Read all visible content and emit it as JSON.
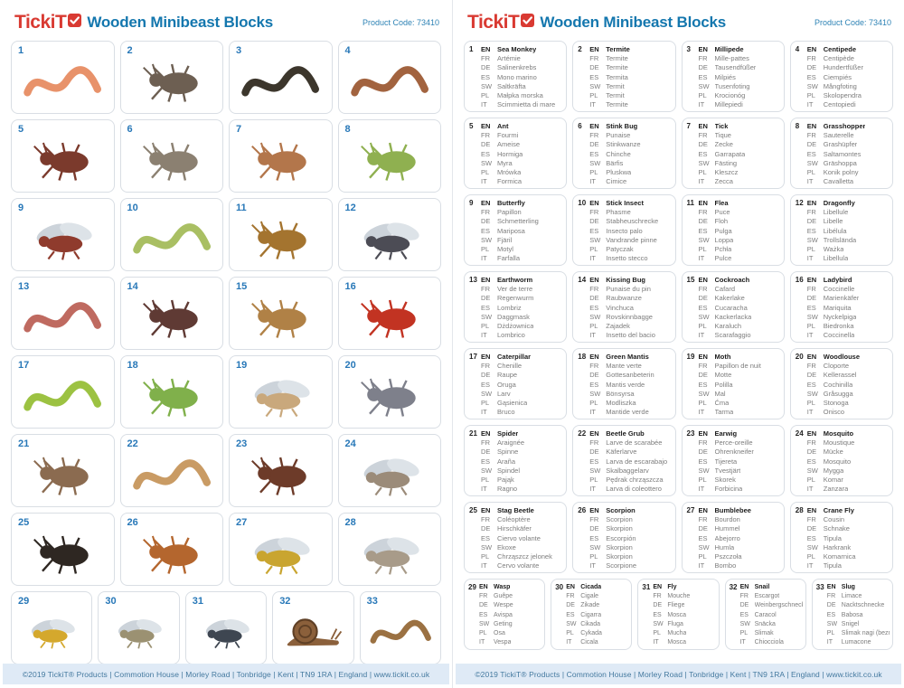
{
  "page": {
    "brand": "TickiT",
    "title": "Wooden Minibeast Blocks",
    "product_code": "Product Code: 73410",
    "footer": "©2019 TickiT® Products  |  Commotion House  |  Morley Road  |  Tonbridge  |  Kent  |  TN9 1RA  |  England  |  www.tickit.co.uk"
  },
  "colors": {
    "brand_red": "#d93a32",
    "heading_blue": "#1477ae",
    "cell_number_blue": "#2878b8",
    "cell_border": "#d9dee4",
    "footer_bg": "#dfeaf6",
    "footer_text": "#44799f",
    "translation_gray": "#7d7d7d"
  },
  "languages": [
    "EN",
    "FR",
    "DE",
    "ES",
    "SW",
    "PL",
    "IT"
  ],
  "minibeasts": [
    {
      "num": 1,
      "shape": "worm",
      "color": "#e8926a",
      "names": [
        "Sea Monkey",
        "Artémie",
        "Salinenkrebs",
        "Mono marino",
        "Saltkräfta",
        "Małpka morska",
        "Scimmietta di mare"
      ]
    },
    {
      "num": 2,
      "shape": "bug",
      "color": "#6d5f52",
      "names": [
        "Termite",
        "Termite",
        "Termite",
        "Termita",
        "Termit",
        "Termit",
        "Termite"
      ]
    },
    {
      "num": 3,
      "shape": "worm",
      "color": "#3c362c",
      "names": [
        "Millipede",
        "Mille-pattes",
        "Tausendfüßer",
        "Milpiés",
        "Tusenfoting",
        "Krocionóg",
        "Millepiedi"
      ]
    },
    {
      "num": 4,
      "shape": "worm",
      "color": "#a2633f",
      "names": [
        "Centipede",
        "Centipède",
        "Hundertfüßer",
        "Ciempiés",
        "Mångfoting",
        "Skolopendra",
        "Centopiedi"
      ]
    },
    {
      "num": 5,
      "shape": "bug",
      "color": "#7b3a2c",
      "names": [
        "Ant",
        "Fourmi",
        "Ameise",
        "Hormiga",
        "Myra",
        "Mrówka",
        "Formica"
      ]
    },
    {
      "num": 6,
      "shape": "bug",
      "color": "#8b8071",
      "names": [
        "Stink Bug",
        "Punaise",
        "Stinkwanze",
        "Chinche",
        "Bärfis",
        "Pluskwa",
        "Cimice"
      ]
    },
    {
      "num": 7,
      "shape": "bug",
      "color": "#b3764b",
      "names": [
        "Tick",
        "Tique",
        "Zecke",
        "Garrapata",
        "Fästing",
        "Kleszcz",
        "Zecca"
      ]
    },
    {
      "num": 8,
      "shape": "bug",
      "color": "#8fb050",
      "names": [
        "Grasshopper",
        "Sauterelle",
        "Grashüpfer",
        "Saltamontes",
        "Gräshoppa",
        "Konik polny",
        "Cavalletta"
      ]
    },
    {
      "num": 9,
      "shape": "winged",
      "color": "#8f3b2d",
      "names": [
        "Butterfly",
        "Papillon",
        "Schmetterling",
        "Mariposa",
        "Fjäril",
        "Motyl",
        "Farfalla"
      ]
    },
    {
      "num": 10,
      "shape": "worm",
      "color": "#a9bf63",
      "names": [
        "Stick Insect",
        "Phasme",
        "Stabheuschrecke",
        "Insecto palo",
        "Vandrande pinne",
        "Patyczak",
        "Insetto stecco"
      ]
    },
    {
      "num": 11,
      "shape": "bug",
      "color": "#a4742f",
      "names": [
        "Flea",
        "Puce",
        "Floh",
        "Pulga",
        "Loppa",
        "Pchła",
        "Pulce"
      ]
    },
    {
      "num": 12,
      "shape": "winged",
      "color": "#4c4c55",
      "names": [
        "Dragonfly",
        "Libellule",
        "Libelle",
        "Libélula",
        "Trollslända",
        "Ważka",
        "Libellula"
      ]
    },
    {
      "num": 13,
      "shape": "worm",
      "color": "#bf6a60",
      "names": [
        "Earthworm",
        "Ver de terre",
        "Regenwurm",
        "Lombriz",
        "Daggmask",
        "Dżdżownica",
        "Lombrico"
      ]
    },
    {
      "num": 14,
      "shape": "bug",
      "color": "#5f3a34",
      "names": [
        "Kissing Bug",
        "Punaise du pin",
        "Raubwanze",
        "Vinchuca",
        "Rovskinnbagge",
        "Zajadek",
        "Insetto del bacio"
      ]
    },
    {
      "num": 15,
      "shape": "bug",
      "color": "#b08146",
      "names": [
        "Cockroach",
        "Cafard",
        "Kakerlake",
        "Cucaracha",
        "Kackerlacka",
        "Karaluch",
        "Scarafaggio"
      ]
    },
    {
      "num": 16,
      "shape": "bug",
      "color": "#c23322",
      "names": [
        "Ladybird",
        "Coccinelle",
        "Marienkäfer",
        "Mariquita",
        "Nyckelpiga",
        "Biedronka",
        "Coccinella"
      ]
    },
    {
      "num": 17,
      "shape": "worm",
      "color": "#9cc242",
      "names": [
        "Caterpillar",
        "Chenille",
        "Raupe",
        "Oruga",
        "Larv",
        "Gąsienica",
        "Bruco"
      ]
    },
    {
      "num": 18,
      "shape": "bug",
      "color": "#80b04b",
      "names": [
        "Green Mantis",
        "Mante verte",
        "Gottesanbeterin",
        "Mantis verde",
        "Bönsyrsa",
        "Modliszka",
        "Mantide verde"
      ]
    },
    {
      "num": 19,
      "shape": "winged",
      "color": "#c9a87c",
      "names": [
        "Moth",
        "Papillon de nuit",
        "Motte",
        "Polilla",
        "Mal",
        "Ćma",
        "Tarma"
      ]
    },
    {
      "num": 20,
      "shape": "bug",
      "color": "#7e808b",
      "names": [
        "Woodlouse",
        "Cloporte",
        "Kellerassel",
        "Cochinilla",
        "Gråsugga",
        "Stonoga",
        "Onisco"
      ]
    },
    {
      "num": 21,
      "shape": "bug",
      "color": "#8b6b50",
      "names": [
        "Spider",
        "Araignée",
        "Spinne",
        "Araña",
        "Spindel",
        "Pająk",
        "Ragno"
      ]
    },
    {
      "num": 22,
      "shape": "worm",
      "color": "#c99b64",
      "names": [
        "Beetle Grub",
        "Larve de scarabée",
        "Käferlarve",
        "Larva de escarabajo",
        "Skalbaggelarv",
        "Pędrak chrząszcza",
        "Larva di coleottero"
      ]
    },
    {
      "num": 23,
      "shape": "bug",
      "color": "#6d3b29",
      "names": [
        "Earwig",
        "Perce-oreille",
        "Ohrenkneifer",
        "Tijereta",
        "Tvestjärt",
        "Skorek",
        "Forbicina"
      ]
    },
    {
      "num": 24,
      "shape": "winged",
      "color": "#9b8b79",
      "names": [
        "Mosquito",
        "Moustique",
        "Mücke",
        "Mosquito",
        "Mygga",
        "Komar",
        "Zanzara"
      ]
    },
    {
      "num": 25,
      "shape": "bug",
      "color": "#2e2722",
      "names": [
        "Stag Beetle",
        "Coléoptère",
        "Hirschkäfer",
        "Ciervo volante",
        "Ekoxe",
        "Chrząszcz jelonek",
        "Cervo volante"
      ]
    },
    {
      "num": 26,
      "shape": "bug",
      "color": "#b4662e",
      "names": [
        "Scorpion",
        "Scorpion",
        "Skorpion",
        "Escorpión",
        "Skorpion",
        "Skorpion",
        "Scorpione"
      ]
    },
    {
      "num": 27,
      "shape": "winged",
      "color": "#c9a530",
      "names": [
        "Bumblebee",
        "Bourdon",
        "Hummel",
        "Abejorro",
        "Humla",
        "Pszczoła",
        "Bombo"
      ]
    },
    {
      "num": 28,
      "shape": "winged",
      "color": "#a89b89",
      "names": [
        "Crane Fly",
        "Cousin",
        "Schnake",
        "Tipula",
        "Harkrank",
        "Komarnica",
        "Tipula"
      ]
    },
    {
      "num": 29,
      "shape": "winged",
      "color": "#d4a82d",
      "names": [
        "Wasp",
        "Guêpe",
        "Wespe",
        "Avispa",
        "Geting",
        "Osa",
        "Vespa"
      ]
    },
    {
      "num": 30,
      "shape": "winged",
      "color": "#9b9172",
      "names": [
        "Cicada",
        "Cigale",
        "Zikade",
        "Cigarra",
        "Cikada",
        "Cykada",
        "Cicala"
      ]
    },
    {
      "num": 31,
      "shape": "winged",
      "color": "#3e4651",
      "names": [
        "Fly",
        "Mouche",
        "Fliege",
        "Mosca",
        "Fluga",
        "Mucha",
        "Mosca"
      ]
    },
    {
      "num": 32,
      "shape": "snail",
      "color": "#8b603b",
      "names": [
        "Snail",
        "Escargot",
        "Weinbergschnecke",
        "Caracol",
        "Snäcka",
        "Ślimak",
        "Chiocciola"
      ]
    },
    {
      "num": 33,
      "shape": "worm",
      "color": "#9b7142",
      "names": [
        "Slug",
        "Limace",
        "Nacktschnecke",
        "Babosa",
        "Snigel",
        "Ślimak nagi (bezmuszlowy)",
        "Lumacone"
      ]
    }
  ]
}
